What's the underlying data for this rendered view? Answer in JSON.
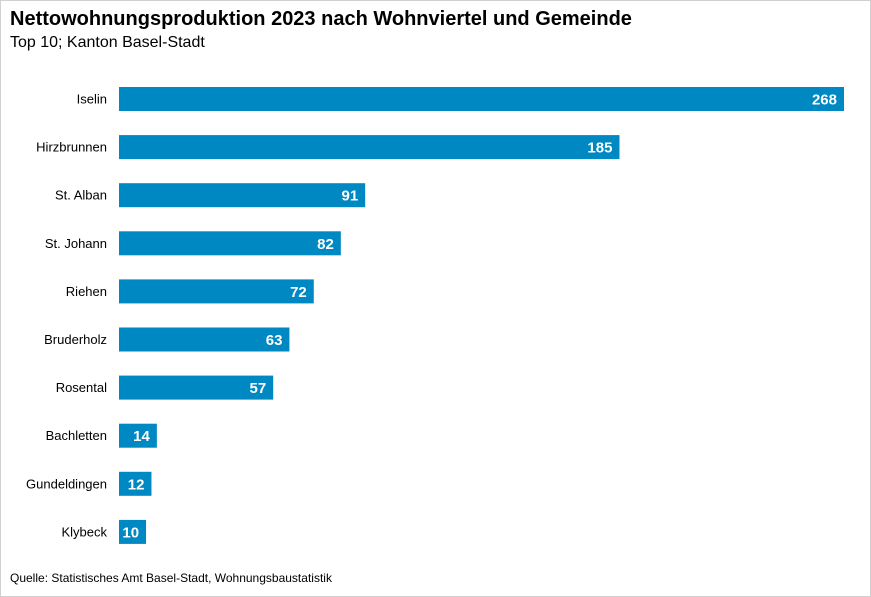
{
  "title": "Nettowohnungsproduktion 2023 nach Wohnviertel und Gemeinde",
  "subtitle": "Top 10; Kanton Basel-Stadt",
  "source": "Quelle: Statistisches Amt Basel-Stadt, Wohnungsbaustatistik",
  "colors": {
    "bar": "#0088c2"
  },
  "chart_data": {
    "type": "bar",
    "orientation": "horizontal",
    "categories": [
      "Iselin",
      "Hirzbrunnen",
      "St. Alban",
      "St. Johann",
      "Riehen",
      "Bruderholz",
      "Rosental",
      "Bachletten",
      "Gundeldingen",
      "Klybeck"
    ],
    "values": [
      268,
      185,
      91,
      82,
      72,
      63,
      57,
      14,
      12,
      10
    ],
    "xlim": [
      0,
      268
    ],
    "grid": false,
    "legend": "none",
    "data_labels": true
  }
}
